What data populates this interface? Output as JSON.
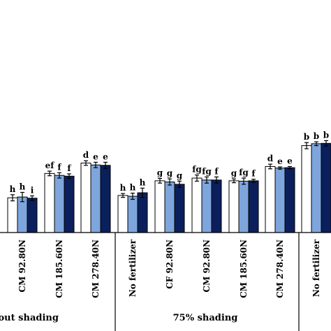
{
  "chart_data": {
    "type": "bar",
    "ylim": [
      0,
      230
    ],
    "series": [
      {
        "name": "",
        "color": "#ffffff"
      },
      {
        "name": "",
        "color": "#7ea6dc"
      },
      {
        "name": "",
        "color": "#0b1f5c"
      }
    ],
    "categories": [
      {
        "label": "CM 92.80N",
        "values": [
          90,
          92,
          89
        ],
        "errors": [
          8,
          12,
          6
        ],
        "letters": [
          "h",
          "h",
          "i"
        ]
      },
      {
        "label": "CM 185.60N",
        "values": [
          153,
          148,
          146
        ],
        "errors": [
          6,
          7,
          6
        ],
        "letters": [
          "ef",
          "f",
          "f"
        ]
      },
      {
        "label": "CM 278.40N",
        "values": [
          180,
          175,
          174
        ],
        "errors": [
          6,
          7,
          8
        ],
        "letters": [
          "d",
          "e",
          "e"
        ]
      },
      {
        "label": "No fertilizer",
        "values": [
          96,
          94,
          103
        ],
        "errors": [
          5,
          8,
          12
        ],
        "letters": [
          "h",
          "h",
          "h"
        ]
      },
      {
        "label": "CF 92.80N",
        "values": [
          134,
          131,
          125
        ],
        "errors": [
          6,
          8,
          8
        ],
        "letters": [
          "g",
          "g",
          "g"
        ]
      },
      {
        "label": "CM 92.80N",
        "values": [
          141,
          136,
          136
        ],
        "errors": [
          8,
          8,
          8
        ],
        "letters": [
          "fg",
          "fg",
          "f"
        ]
      },
      {
        "label": "CM 185.60N",
        "values": [
          134,
          133,
          134
        ],
        "errors": [
          5,
          8,
          4
        ],
        "letters": [
          "g",
          "fg",
          "f"
        ]
      },
      {
        "label": "CM 278.40N",
        "values": [
          171,
          167,
          168
        ],
        "errors": [
          6,
          3,
          3
        ],
        "letters": [
          "d",
          "e",
          "e"
        ]
      },
      {
        "label": "No fertilizer",
        "values": [
          225,
          230,
          231
        ],
        "errors": [
          8,
          5,
          7
        ],
        "letters": [
          "b",
          "b",
          "b"
        ]
      }
    ],
    "groups": [
      {
        "label": "hout shading",
        "span": [
          0,
          2
        ]
      },
      {
        "label": "75% shading",
        "span": [
          3,
          7
        ]
      }
    ]
  }
}
